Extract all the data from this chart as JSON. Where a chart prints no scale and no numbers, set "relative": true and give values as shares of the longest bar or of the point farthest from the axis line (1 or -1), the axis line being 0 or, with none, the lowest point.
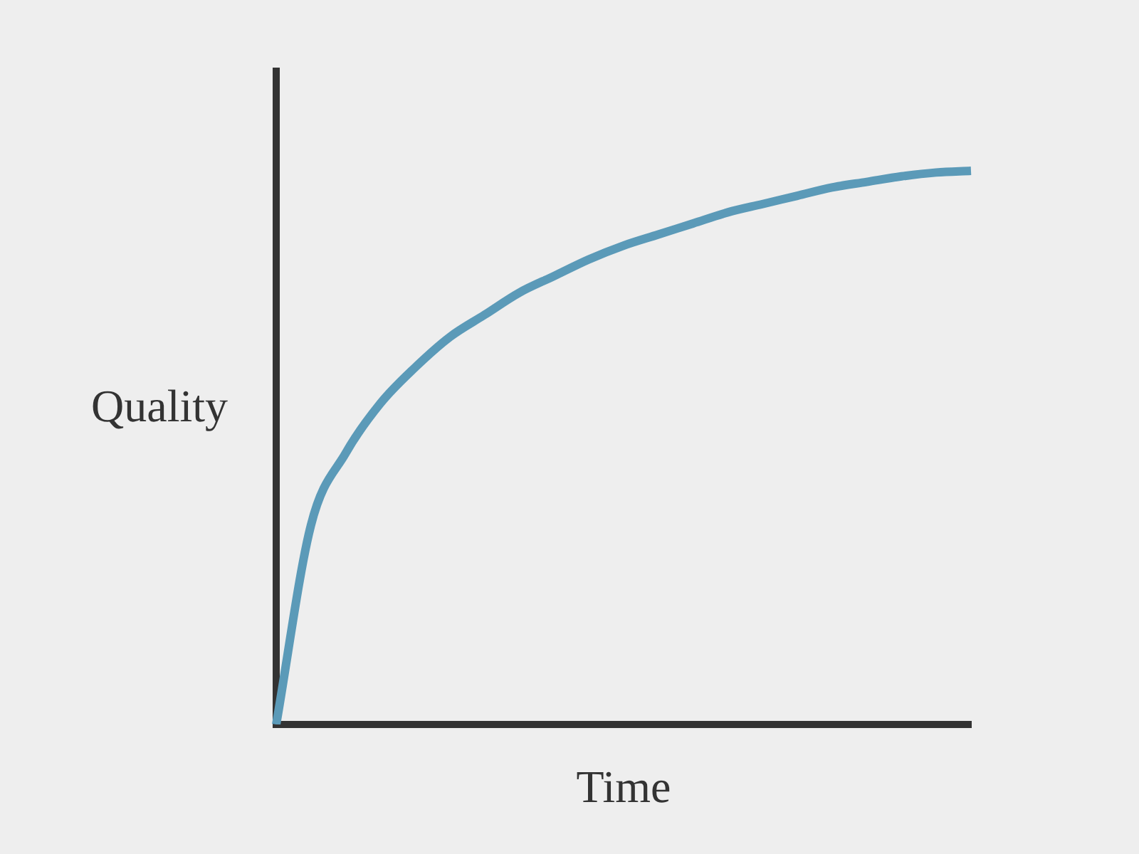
{
  "chart_data": {
    "type": "line",
    "relative": true,
    "xlabel": "Time",
    "ylabel": "Quality",
    "categories": [
      null,
      null,
      null,
      null,
      null,
      null,
      null,
      null,
      null,
      null,
      null,
      null,
      null,
      null,
      null,
      null,
      null,
      null,
      null,
      null,
      null
    ],
    "series": [
      {
        "color": "#5b9ab8",
        "values": [
          0,
          0.36,
          0.49,
          0.58,
          0.645,
          0.7,
          0.74,
          0.78,
          0.81,
          0.84,
          0.865,
          0.885,
          0.905,
          0.925,
          0.94,
          0.955,
          0.97,
          0.98,
          0.99,
          0.997,
          1
        ]
      }
    ],
    "marker": "none",
    "line_style": "solid",
    "grid": false,
    "legend": false
  }
}
